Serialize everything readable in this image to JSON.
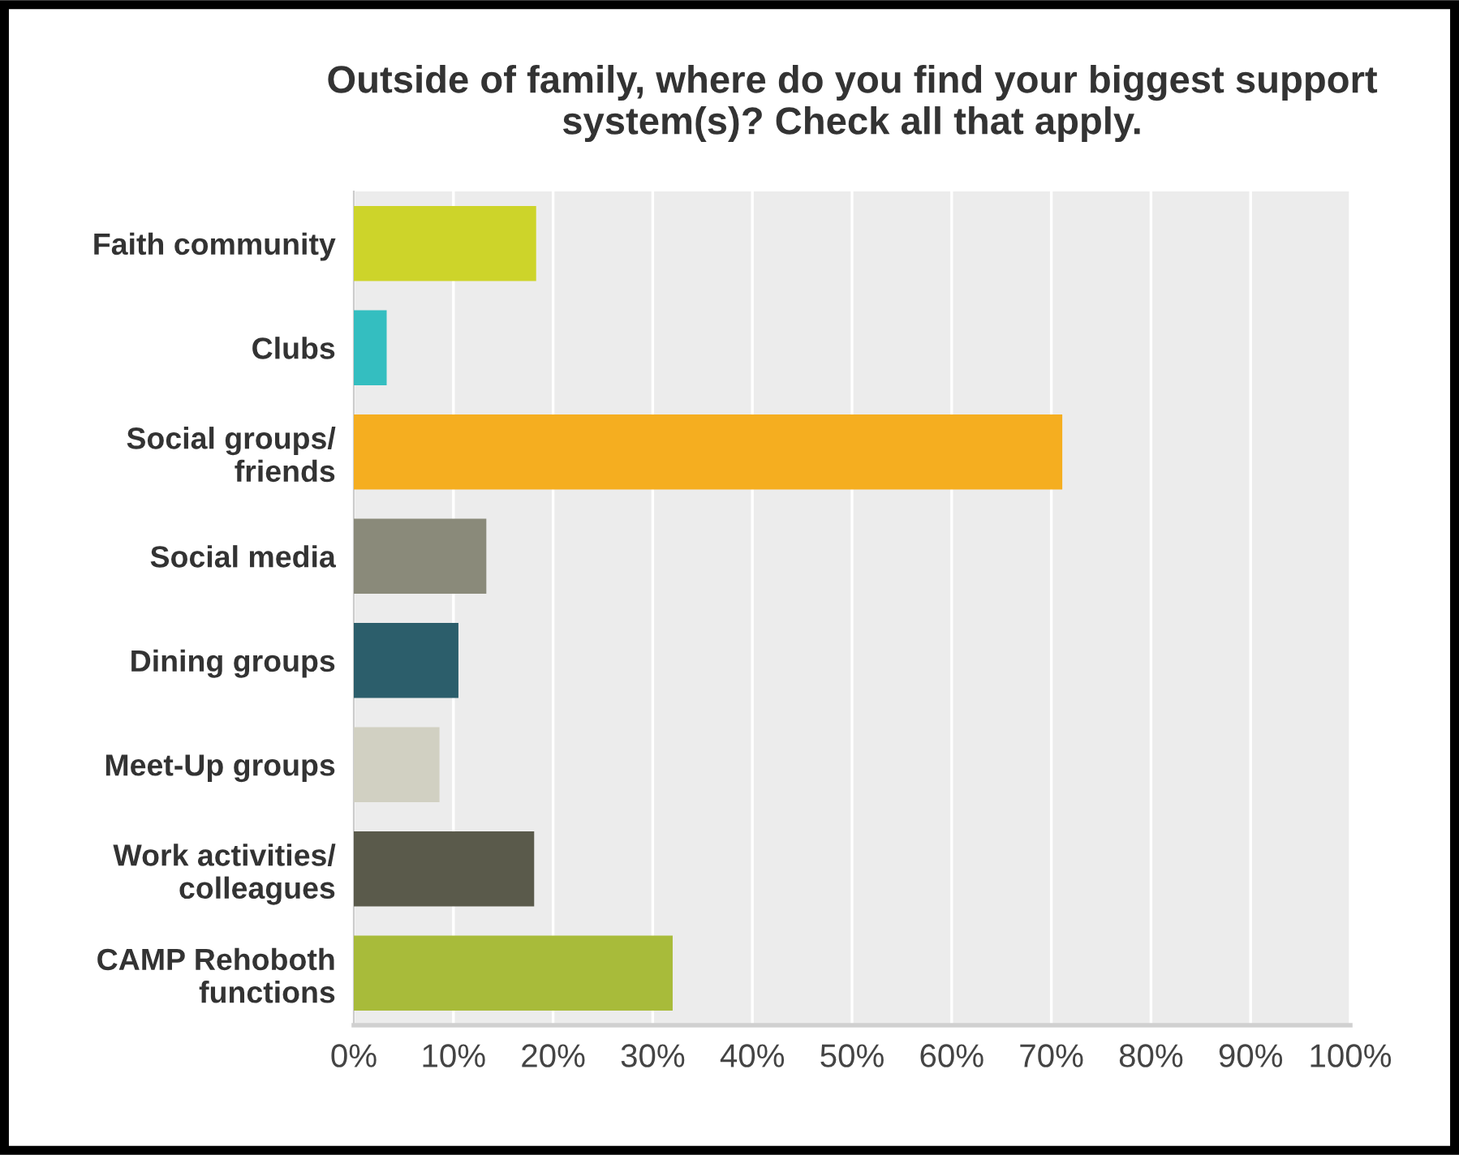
{
  "chart_data": {
    "type": "bar",
    "orientation": "horizontal",
    "title": "Outside of family, where do you find your biggest support system(s)? Check all that apply.",
    "categories": [
      "Faith community",
      "Clubs",
      "Social groups/\nfriends",
      "Social media",
      "Dining groups",
      "Meet-Up groups",
      "Work activities/\ncolleagues",
      "CAMP Rehoboth\nfunctions"
    ],
    "values": [
      18.3,
      3.3,
      71.1,
      13.3,
      10.5,
      8.6,
      18.1,
      32
    ],
    "colors": [
      "#cdd42a",
      "#34bec0",
      "#f5ae20",
      "#8a8a7a",
      "#2c5e6b",
      "#d1d0c2",
      "#5a5a4b",
      "#a8bb3a"
    ],
    "xlim": [
      0,
      100
    ],
    "xticks": [
      {
        "value": 0,
        "label": "0%"
      },
      {
        "value": 10,
        "label": "10%"
      },
      {
        "value": 20,
        "label": "20%"
      },
      {
        "value": 30,
        "label": "30%"
      },
      {
        "value": 40,
        "label": "40%"
      },
      {
        "value": 50,
        "label": "50%"
      },
      {
        "value": 60,
        "label": "60%"
      },
      {
        "value": 70,
        "label": "70%"
      },
      {
        "value": 80,
        "label": "80%"
      },
      {
        "value": 90,
        "label": "90%"
      },
      {
        "value": 100,
        "label": "100%"
      }
    ],
    "grid": "x",
    "legend": false
  }
}
